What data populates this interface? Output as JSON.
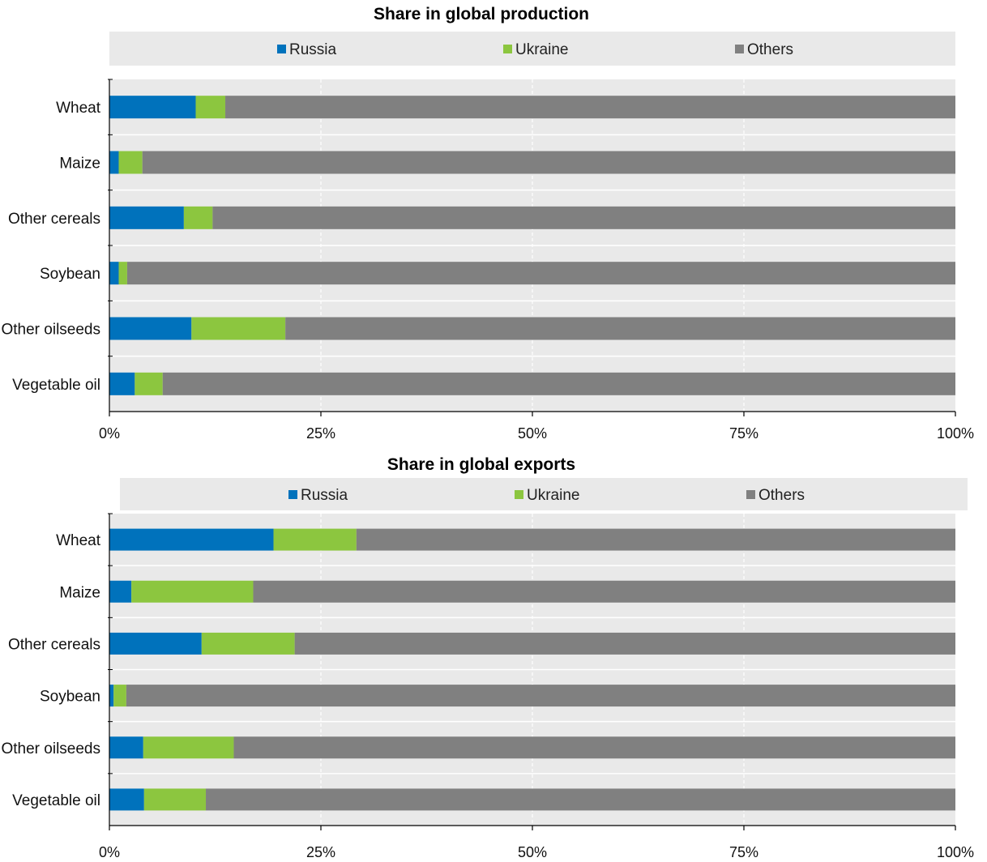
{
  "colors": {
    "Russia": "#0072bc",
    "Ukraine": "#8cc63f",
    "Others": "#808080",
    "plot_bg": "#e9e9e9",
    "legend_bg": "#e9e9e9",
    "grid": "#ffffff"
  },
  "chart_data": [
    {
      "type": "bar",
      "orientation": "horizontal",
      "stacked": true,
      "title": "Share in global production",
      "categories": [
        "Wheat",
        "Maize",
        "Other cereals",
        "Soybean",
        "Other oilseeds",
        "Vegetable oil"
      ],
      "series": [
        {
          "name": "Russia",
          "values": [
            10.2,
            1.1,
            8.8,
            1.1,
            9.7,
            3.0
          ]
        },
        {
          "name": "Ukraine",
          "values": [
            3.5,
            2.8,
            3.4,
            1.0,
            11.1,
            3.3
          ]
        },
        {
          "name": "Others",
          "values": [
            86.3,
            96.1,
            87.8,
            97.9,
            79.2,
            93.7
          ]
        }
      ],
      "xlim": [
        0,
        100
      ],
      "xticks": [
        "0%",
        "25%",
        "50%",
        "75%",
        "100%"
      ],
      "legend": "top",
      "grid": true
    },
    {
      "type": "bar",
      "orientation": "horizontal",
      "stacked": true,
      "title": "Share in global exports",
      "categories": [
        "Wheat",
        "Maize",
        "Other cereals",
        "Soybean",
        "Other oilseeds",
        "Vegetable oil"
      ],
      "series": [
        {
          "name": "Russia",
          "values": [
            19.4,
            2.6,
            10.9,
            0.5,
            4.0,
            4.1
          ]
        },
        {
          "name": "Ukraine",
          "values": [
            9.8,
            14.4,
            11.0,
            1.5,
            10.7,
            7.3
          ]
        },
        {
          "name": "Others",
          "values": [
            70.8,
            83.0,
            78.1,
            98.0,
            85.3,
            88.6
          ]
        }
      ],
      "xlim": [
        0,
        100
      ],
      "xticks": [
        "0%",
        "25%",
        "50%",
        "75%",
        "100%"
      ],
      "legend": "top",
      "grid": true
    }
  ]
}
